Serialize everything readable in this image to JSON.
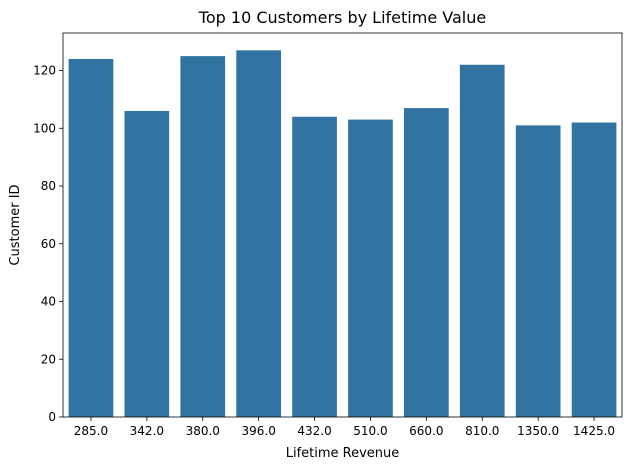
{
  "chart_data": {
    "type": "bar",
    "title": "Top 10 Customers by Lifetime Value",
    "xlabel": "Lifetime Revenue",
    "ylabel": "Customer ID",
    "categories": [
      "285.0",
      "342.0",
      "380.0",
      "396.0",
      "432.0",
      "510.0",
      "660.0",
      "810.0",
      "1350.0",
      "1425.0"
    ],
    "values": [
      124,
      106,
      125,
      127,
      104,
      103,
      107,
      122,
      101,
      102
    ],
    "ylim": [
      0,
      133
    ],
    "yticks": [
      0,
      20,
      40,
      60,
      80,
      100,
      120
    ],
    "bar_color": "#3274a1",
    "grid": false,
    "legend": "none"
  }
}
